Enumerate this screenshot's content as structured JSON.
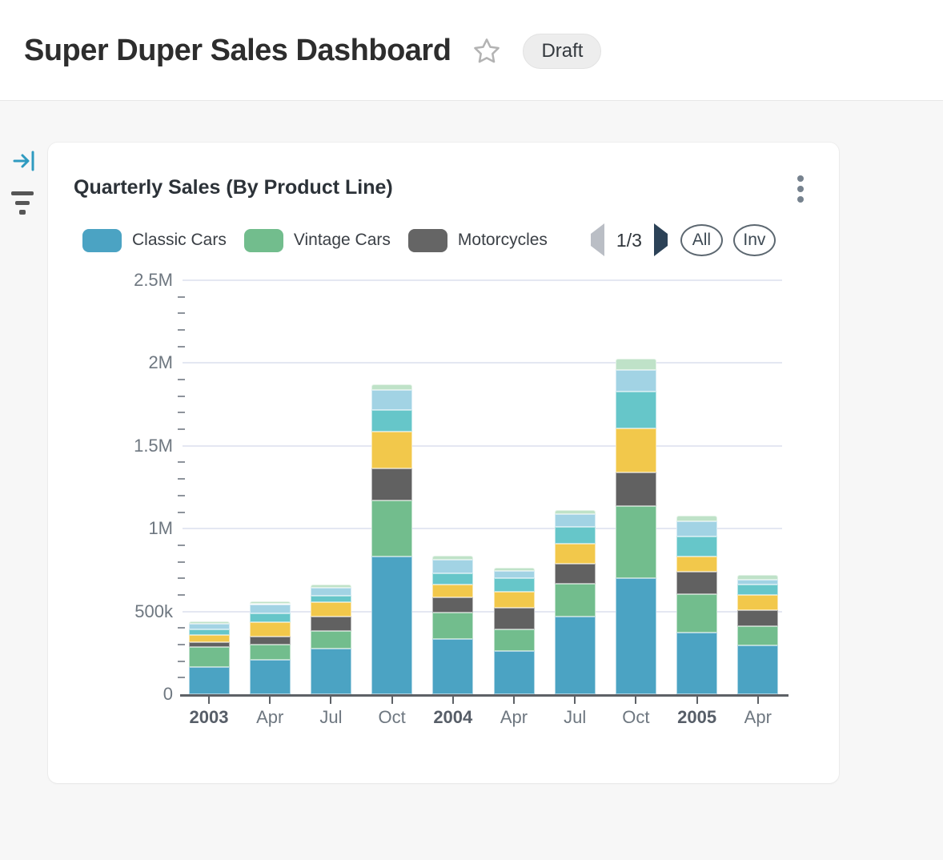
{
  "header": {
    "title": "Super Duper Sales Dashboard",
    "status_badge": "Draft"
  },
  "card": {
    "title": "Quarterly Sales (By Product Line)",
    "legend": {
      "items": [
        {
          "label": "Classic Cars",
          "color": "#4ba3c3"
        },
        {
          "label": "Vintage Cars",
          "color": "#72bd8d"
        },
        {
          "label": "Motorcycles",
          "color": "#656565"
        }
      ],
      "pagination": {
        "label": "1/3",
        "prev_enabled": false,
        "next_enabled": true
      },
      "buttons": {
        "all": "All",
        "invert": "Inv"
      }
    }
  },
  "chart_data": {
    "type": "bar",
    "stacked": true,
    "title": "Quarterly Sales (By Product Line)",
    "unit": "values in thousands (k); M = million",
    "ylim_k": [
      0,
      2500
    ],
    "grid": true,
    "legend_position": "top",
    "categories": [
      {
        "label": "2003",
        "bold": true
      },
      {
        "label": "Apr",
        "bold": false
      },
      {
        "label": "Jul",
        "bold": false
      },
      {
        "label": "Oct",
        "bold": false
      },
      {
        "label": "2004",
        "bold": true
      },
      {
        "label": "Apr",
        "bold": false
      },
      {
        "label": "Jul",
        "bold": false
      },
      {
        "label": "Oct",
        "bold": false
      },
      {
        "label": "2005",
        "bold": true
      },
      {
        "label": "Apr",
        "bold": false
      }
    ],
    "series_stack_order": "bottom to top",
    "series": [
      {
        "name": "Classic Cars",
        "color": "#4ba3c3",
        "values_k": [
          163,
          207,
          277,
          832,
          333,
          261,
          471,
          700,
          374,
          293
        ]
      },
      {
        "name": "Vintage Cars",
        "color": "#72bd8d",
        "values_k": [
          121,
          94,
          105,
          340,
          162,
          133,
          194,
          437,
          230,
          117
        ]
      },
      {
        "name": "Motorcycles",
        "color": "#616161",
        "values_k": [
          32,
          49,
          89,
          194,
          89,
          126,
          121,
          204,
          134,
          97
        ]
      },
      {
        "name": "",
        "color": "#f2c84b",
        "values_k": [
          44,
          84,
          86,
          218,
          78,
          100,
          125,
          262,
          92,
          91
        ]
      },
      {
        "name": "",
        "color": "#66c6c9",
        "values_k": [
          34,
          53,
          36,
          133,
          68,
          81,
          102,
          223,
          121,
          63
        ]
      },
      {
        "name": "",
        "color": "#a2d3e4",
        "values_k": [
          32,
          57,
          49,
          121,
          81,
          45,
          73,
          133,
          94,
          29
        ]
      },
      {
        "name": "",
        "color": "#bfe2c8",
        "values_k": [
          16,
          19,
          20,
          32,
          24,
          19,
          27,
          65,
          32,
          29
        ]
      }
    ],
    "y_axis": {
      "ticks": [
        {
          "label": "0",
          "value_k": 0
        },
        {
          "label": "500k",
          "value_k": 500
        },
        {
          "label": "1M",
          "value_k": 1000
        },
        {
          "label": "1.5M",
          "value_k": 1500
        },
        {
          "label": "2M",
          "value_k": 2000
        },
        {
          "label": "2.5M",
          "value_k": 2500
        }
      ],
      "minor_step_k": 100
    }
  }
}
